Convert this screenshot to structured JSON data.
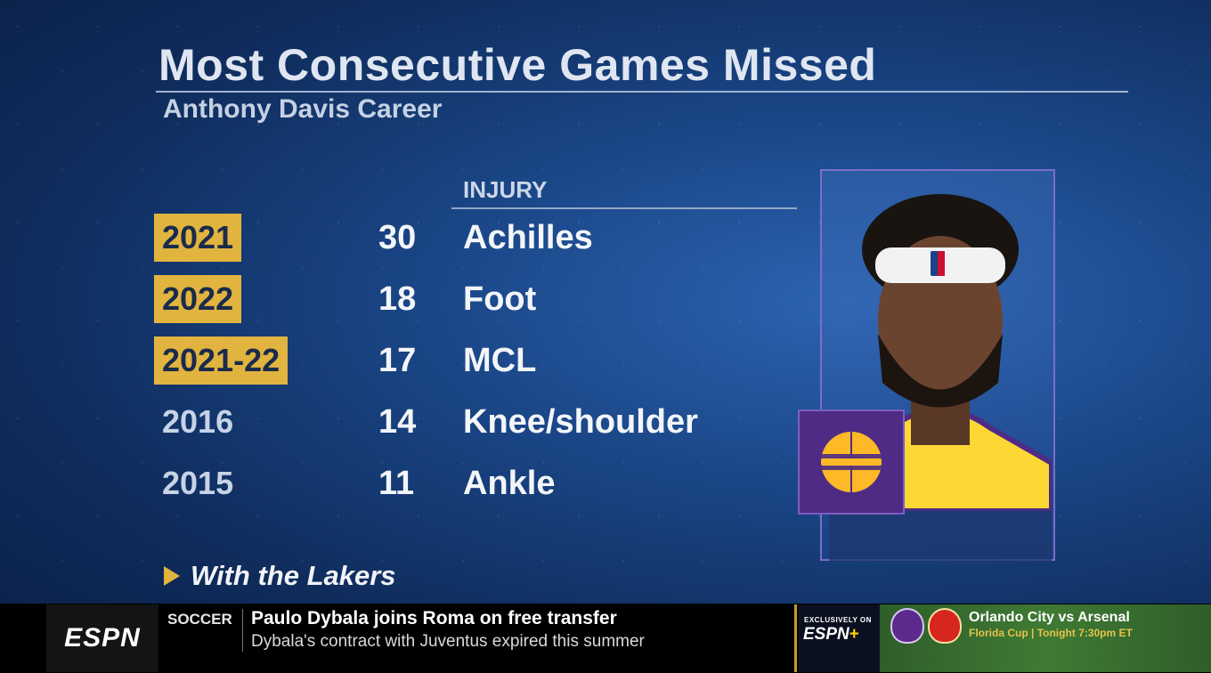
{
  "title": "Most Consecutive Games Missed",
  "subtitle": "Anthony Davis Career",
  "table": {
    "injury_header": "INJURY",
    "rows": [
      {
        "year": "2021",
        "games": "30",
        "injury": "Achilles",
        "highlight": true
      },
      {
        "year": "2022",
        "games": "18",
        "injury": "Foot",
        "highlight": true
      },
      {
        "year": "2021-22",
        "games": "17",
        "injury": "MCL",
        "highlight": true
      },
      {
        "year": "2016",
        "games": "14",
        "injury": "Knee/shoulder",
        "highlight": false
      },
      {
        "year": "2015",
        "games": "11",
        "injury": "Ankle",
        "highlight": false
      }
    ]
  },
  "note": "With the Lakers",
  "colors": {
    "highlight": "#e1b43f",
    "lakers_purple": "#4f2b85",
    "lakers_gold": "#fdb927"
  },
  "ticker": {
    "network_logo": "ESPN",
    "sport": "SOCCER",
    "headline": "Paulo Dybala joins Roma on free transfer",
    "subline": "Dybala's contract with Juventus expired this summer",
    "promo_label": "EXCLUSIVELY ON",
    "promo_service": "ESPN",
    "promo_plus": "+",
    "match": "Orlando City vs Arsenal",
    "match_sub": "Florida Cup | Tonight 7:30pm ET"
  }
}
